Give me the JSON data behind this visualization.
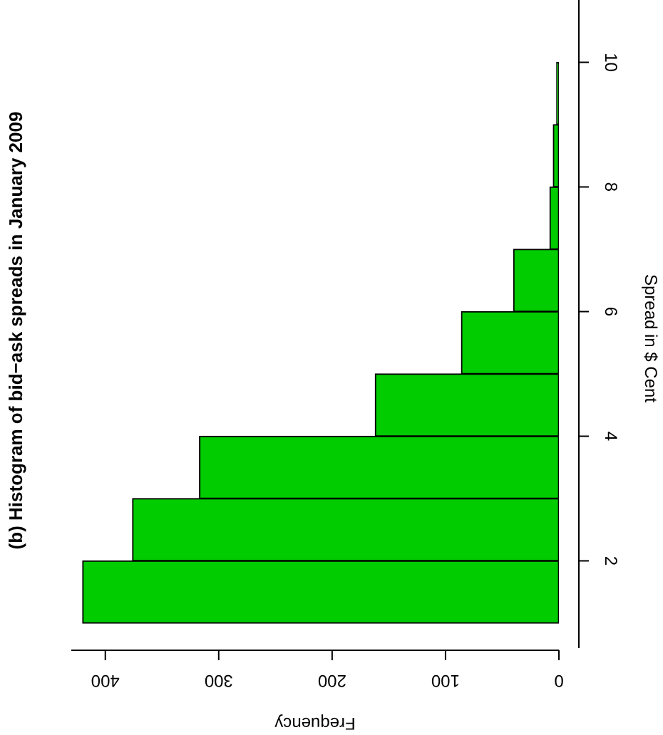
{
  "chart_data": {
    "type": "histogram",
    "orientation": "horizontal",
    "title": "(b) Histogram of bid−ask spreads in January 2009",
    "xlabel": "Frequency",
    "ylabel": "Spread in $ Cent",
    "bins": [
      1,
      2,
      3,
      4,
      5,
      6,
      7,
      8,
      9,
      10,
      11
    ],
    "values": [
      420,
      376,
      317,
      162,
      86,
      40,
      8,
      5,
      2,
      null
    ],
    "color": "#00cc00",
    "xlim": [
      430,
      0
    ],
    "xticks": [
      0,
      100,
      200,
      300,
      400
    ],
    "ylim": [
      0.6,
      11
    ],
    "yticks": [
      2,
      4,
      6,
      8,
      10
    ]
  }
}
